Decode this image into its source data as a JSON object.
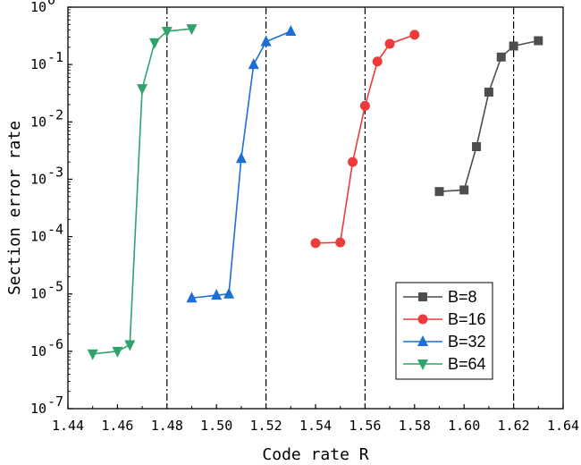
{
  "chart_data": {
    "type": "line",
    "title": "",
    "xlabel": "Code rate R",
    "ylabel": "Section error rate",
    "xlim": [
      1.44,
      1.64
    ],
    "ylim": [
      1e-07,
      1
    ],
    "yscale": "log",
    "x_ticks": [
      1.44,
      1.46,
      1.48,
      1.5,
      1.52,
      1.54,
      1.56,
      1.58,
      1.6,
      1.62,
      1.64
    ],
    "x_tick_labels": [
      "1.44",
      "1.46",
      "1.48",
      "1.50",
      "1.52",
      "1.54",
      "1.56",
      "1.58",
      "1.60",
      "1.62",
      "1.64"
    ],
    "y_ticks": [
      1e-07,
      1e-06,
      1e-05,
      0.0001,
      0.001,
      0.01,
      0.1,
      1
    ],
    "y_tick_exponents": [
      "-7",
      "-6",
      "-5",
      "-4",
      "-3",
      "-2",
      "-1",
      "0"
    ],
    "y_tick_base": "10",
    "grid": false,
    "legend_position": "bottom-right",
    "vlines": [
      1.48,
      1.52,
      1.56,
      1.62
    ],
    "series": [
      {
        "name": "B=8",
        "color": "#4d4d4d",
        "marker": "square",
        "x": [
          1.59,
          1.6,
          1.605,
          1.61,
          1.615,
          1.62,
          1.63
        ],
        "y": [
          0.00061,
          0.00065,
          0.0037,
          0.033,
          0.135,
          0.21,
          0.26
        ]
      },
      {
        "name": "B=16",
        "color": "#ee3a3a",
        "marker": "circle",
        "x": [
          1.54,
          1.55,
          1.555,
          1.56,
          1.565,
          1.57,
          1.58
        ],
        "y": [
          7.7e-05,
          7.9e-05,
          0.002,
          0.019,
          0.113,
          0.23,
          0.33
        ]
      },
      {
        "name": "B=32",
        "color": "#1c6fd4",
        "marker": "triangle-up",
        "x": [
          1.49,
          1.5,
          1.505,
          1.51,
          1.515,
          1.52,
          1.53
        ],
        "y": [
          8.5e-06,
          9.5e-06,
          1e-05,
          0.0023,
          0.1,
          0.25,
          0.38
        ]
      },
      {
        "name": "B=64",
        "color": "#2fa36b",
        "marker": "triangle-down",
        "x": [
          1.45,
          1.46,
          1.465,
          1.47,
          1.475,
          1.48,
          1.49
        ],
        "y": [
          9e-07,
          1e-06,
          1.3e-06,
          0.038,
          0.24,
          0.38,
          0.42
        ]
      }
    ]
  }
}
